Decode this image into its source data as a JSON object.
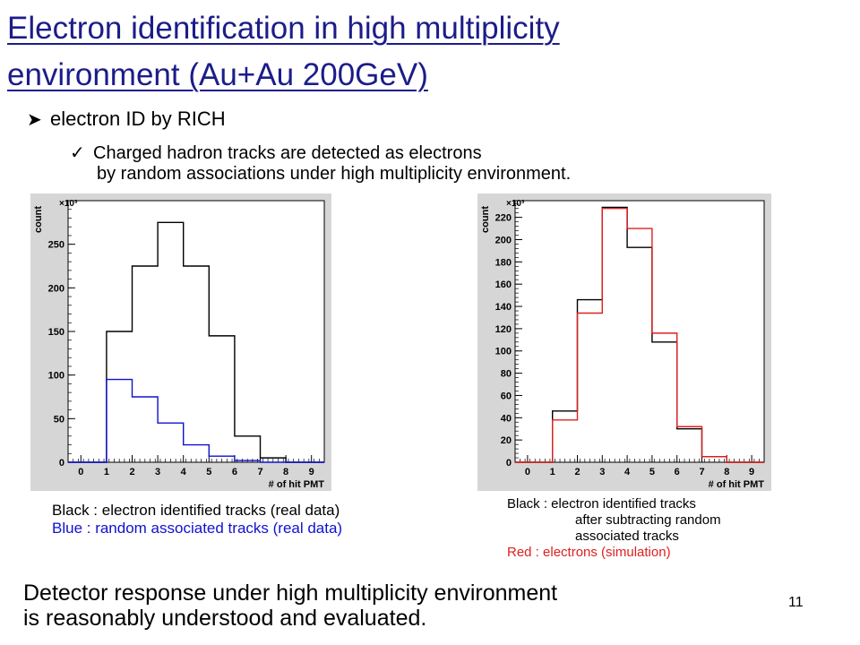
{
  "title_line1": "Electron identification in high multiplicity",
  "title_line2": "environment (Au+Au 200GeV)",
  "bullet1": "electron ID by RICH",
  "bullet2_line1": "Charged hadron tracks are detected as electrons",
  "bullet2_line2": "by random associations under high multiplicity environment.",
  "caption_left": {
    "black": "Black : electron identified tracks (real data)",
    "blue": "Blue :   random associated tracks (real data)"
  },
  "caption_right": {
    "black1": "Black : electron identified tracks",
    "black2": "after subtracting random",
    "black3": "associated tracks",
    "red": "Red :   electrons (simulation)"
  },
  "conclusion_line1": "Detector response under high multiplicity environment",
  "conclusion_line2": "is reasonably understood and evaluated.",
  "page_number": "11",
  "colors": {
    "title": "#1c1c8a",
    "black_series": "#000000",
    "blue_series": "#1010d0",
    "red_series": "#e02020"
  },
  "chart_data": [
    {
      "type": "histogram",
      "xlabel": "# of hit PMT",
      "ylabel": "count",
      "multiplier_label": "×10³",
      "xlim": [
        -0.5,
        9.5
      ],
      "ylim": [
        0,
        300
      ],
      "xticks": [
        0,
        1,
        2,
        3,
        4,
        5,
        6,
        7,
        8,
        9
      ],
      "yticks": [
        0,
        50,
        100,
        150,
        200,
        250
      ],
      "bins": [
        1.5,
        2.5,
        3.5,
        4.5,
        5.5,
        6.5,
        7.5,
        8.5
      ],
      "series": [
        {
          "color": "#000000",
          "values": [
            150,
            225,
            275,
            225,
            145,
            30,
            5,
            0
          ]
        },
        {
          "color": "#1010d0",
          "values": [
            95,
            75,
            45,
            20,
            7,
            2,
            0,
            0
          ]
        }
      ]
    },
    {
      "type": "histogram",
      "xlabel": "# of hit PMT",
      "ylabel": "count",
      "multiplier_label": "×10³",
      "xlim": [
        -0.5,
        9.5
      ],
      "ylim": [
        0,
        235
      ],
      "xticks": [
        0,
        1,
        2,
        3,
        4,
        5,
        6,
        7,
        8,
        9
      ],
      "yticks": [
        0,
        20,
        40,
        60,
        80,
        100,
        120,
        140,
        160,
        180,
        200,
        220
      ],
      "bins": [
        1.5,
        2.5,
        3.5,
        4.5,
        5.5,
        6.5,
        7.5,
        8.5
      ],
      "series": [
        {
          "color": "#000000",
          "values": [
            46,
            146,
            229,
            193,
            108,
            30,
            5,
            0
          ]
        },
        {
          "color": "#e02020",
          "values": [
            38,
            134,
            228,
            210,
            116,
            32,
            5,
            0
          ]
        }
      ]
    }
  ]
}
